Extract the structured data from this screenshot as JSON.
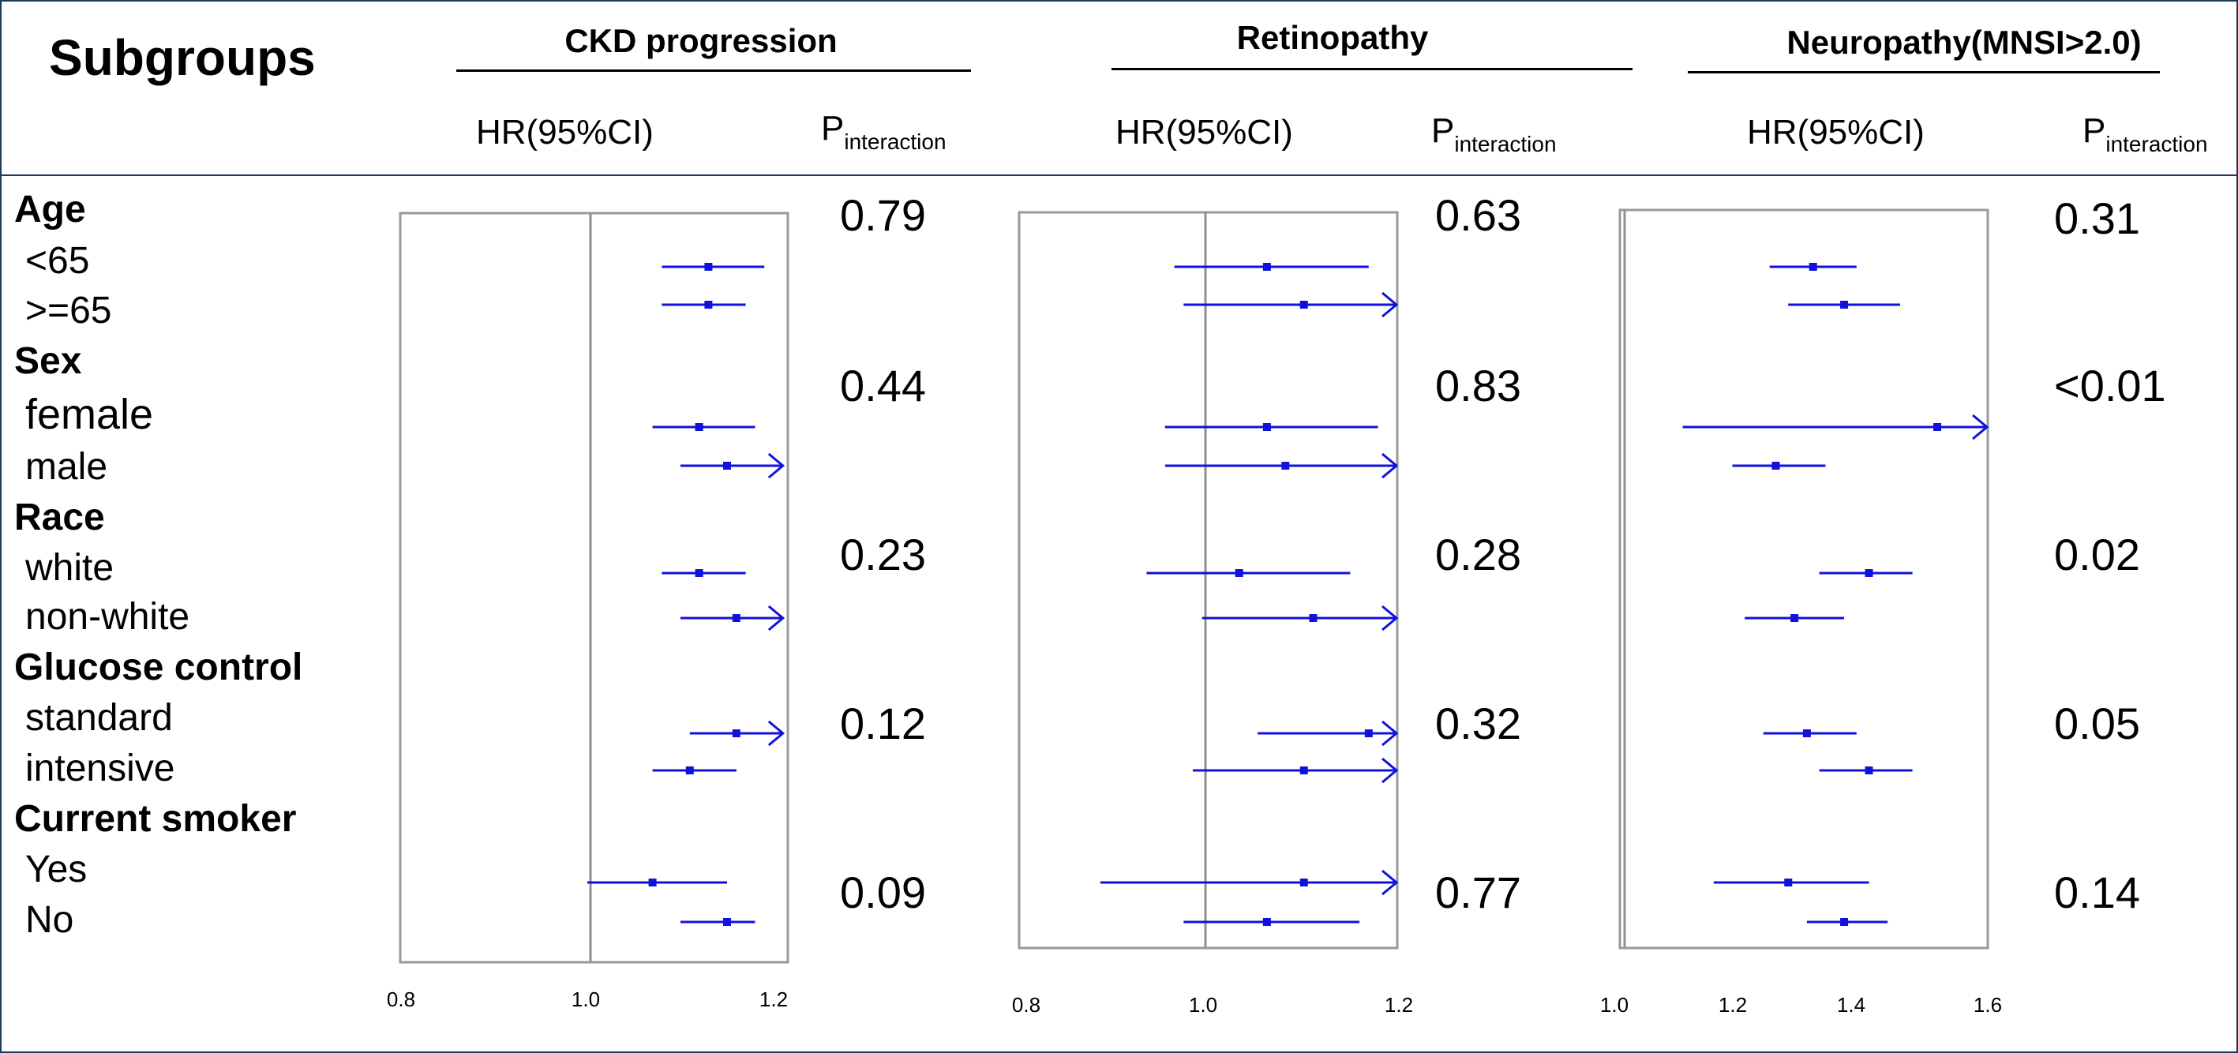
{
  "title": "Subgroups",
  "colors": {
    "ci": "#1111dd",
    "frame": "#999999",
    "ref": "#8f8f8f",
    "border": "#1f3a5a"
  },
  "rows": [
    {
      "label": "Age",
      "type": "group"
    },
    {
      "label": "<65",
      "type": "sub"
    },
    {
      "label": ">=65",
      "type": "sub"
    },
    {
      "label": "Sex",
      "type": "group"
    },
    {
      "label": "female",
      "type": "sub"
    },
    {
      "label": "male",
      "type": "sub"
    },
    {
      "label": "Race",
      "type": "group"
    },
    {
      "label": "white",
      "type": "sub"
    },
    {
      "label": "non-white",
      "type": "sub"
    },
    {
      "label": "Glucose control",
      "type": "group"
    },
    {
      "label": "standard",
      "type": "sub"
    },
    {
      "label": "intensive",
      "type": "sub"
    },
    {
      "label": "Current smoker",
      "type": "group"
    },
    {
      "label": "Yes",
      "type": "sub"
    },
    {
      "label": "No",
      "type": "sub"
    }
  ],
  "hr_header": "HR(95%CI)",
  "p_header_main": "P",
  "p_header_sub": "interaction",
  "chart_data": [
    {
      "type": "forest",
      "title": "CKD progression",
      "xlim": [
        0.8,
        1.2
      ],
      "ticks": [
        "0.8",
        "1.0",
        "1.2"
      ],
      "reference": 1.0,
      "series": [
        {
          "name": "<65",
          "hr": 1.13,
          "lo": 1.08,
          "hi": 1.19,
          "arrow": false
        },
        {
          "name": ">=65",
          "hr": 1.13,
          "lo": 1.08,
          "hi": 1.17,
          "arrow": false
        },
        {
          "name": "female",
          "hr": 1.12,
          "lo": 1.07,
          "hi": 1.18,
          "arrow": false
        },
        {
          "name": "male",
          "hr": 1.15,
          "lo": 1.1,
          "hi": 1.21,
          "arrow": true
        },
        {
          "name": "white",
          "hr": 1.12,
          "lo": 1.08,
          "hi": 1.17,
          "arrow": false
        },
        {
          "name": "non-white",
          "hr": 1.16,
          "lo": 1.1,
          "hi": 1.21,
          "arrow": true
        },
        {
          "name": "standard",
          "hr": 1.16,
          "lo": 1.11,
          "hi": 1.21,
          "arrow": true
        },
        {
          "name": "intensive",
          "hr": 1.11,
          "lo": 1.07,
          "hi": 1.16,
          "arrow": false
        },
        {
          "name": "Yes",
          "hr": 1.07,
          "lo": 1.0,
          "hi": 1.15,
          "arrow": false
        },
        {
          "name": "No",
          "hr": 1.15,
          "lo": 1.1,
          "hi": 1.18,
          "arrow": false
        }
      ],
      "p_interaction": [
        "0.79",
        "0.44",
        "0.23",
        "0.12",
        "0.09"
      ]
    },
    {
      "type": "forest",
      "title": "Retinopathy",
      "xlim": [
        0.8,
        1.2
      ],
      "ticks": [
        "0.8",
        "1.0",
        "1.2"
      ],
      "reference": 1.0,
      "series": [
        {
          "name": "<65",
          "hr": 1.06,
          "lo": 0.96,
          "hi": 1.17,
          "arrow": false
        },
        {
          "name": ">=65",
          "hr": 1.1,
          "lo": 0.97,
          "hi": 1.2,
          "arrow": true
        },
        {
          "name": "female",
          "hr": 1.06,
          "lo": 0.95,
          "hi": 1.18,
          "arrow": false
        },
        {
          "name": "male",
          "hr": 1.08,
          "lo": 0.95,
          "hi": 1.2,
          "arrow": true
        },
        {
          "name": "white",
          "hr": 1.03,
          "lo": 0.93,
          "hi": 1.15,
          "arrow": false
        },
        {
          "name": "non-white",
          "hr": 1.11,
          "lo": 0.99,
          "hi": 1.2,
          "arrow": true
        },
        {
          "name": "standard",
          "hr": 1.17,
          "lo": 1.05,
          "hi": 1.2,
          "arrow": true
        },
        {
          "name": "intensive",
          "hr": 1.1,
          "lo": 0.98,
          "hi": 1.2,
          "arrow": true
        },
        {
          "name": "Yes",
          "hr": 1.1,
          "lo": 0.88,
          "hi": 1.2,
          "arrow": true
        },
        {
          "name": "No",
          "hr": 1.06,
          "lo": 0.97,
          "hi": 1.16,
          "arrow": false
        }
      ],
      "p_interaction": [
        "0.63",
        "0.83",
        "0.28",
        "0.32",
        "0.77"
      ]
    },
    {
      "type": "forest",
      "title": "Neuropathy(MNSI>2.0)",
      "xlim": [
        1.0,
        1.6
      ],
      "ticks": [
        "1.0",
        "1.2",
        "1.4",
        "1.6"
      ],
      "reference": 1.0,
      "series": [
        {
          "name": "<65",
          "hr": 1.32,
          "lo": 1.25,
          "hi": 1.39,
          "arrow": false
        },
        {
          "name": ">=65",
          "hr": 1.37,
          "lo": 1.28,
          "hi": 1.46,
          "arrow": false
        },
        {
          "name": "female",
          "hr": 1.52,
          "lo": 1.11,
          "hi": 1.6,
          "arrow": true
        },
        {
          "name": "male",
          "hr": 1.26,
          "lo": 1.19,
          "hi": 1.34,
          "arrow": false
        },
        {
          "name": "white",
          "hr": 1.41,
          "lo": 1.33,
          "hi": 1.48,
          "arrow": false
        },
        {
          "name": "non-white",
          "hr": 1.29,
          "lo": 1.21,
          "hi": 1.37,
          "arrow": false
        },
        {
          "name": "standard",
          "hr": 1.31,
          "lo": 1.24,
          "hi": 1.39,
          "arrow": false
        },
        {
          "name": "intensive",
          "hr": 1.41,
          "lo": 1.33,
          "hi": 1.48,
          "arrow": false
        },
        {
          "name": "Yes",
          "hr": 1.28,
          "lo": 1.16,
          "hi": 1.41,
          "arrow": false
        },
        {
          "name": "No",
          "hr": 1.37,
          "lo": 1.31,
          "hi": 1.44,
          "arrow": false
        }
      ],
      "p_interaction": [
        "0.31",
        "<0.01",
        "0.02",
        "0.05",
        "0.14"
      ]
    }
  ]
}
